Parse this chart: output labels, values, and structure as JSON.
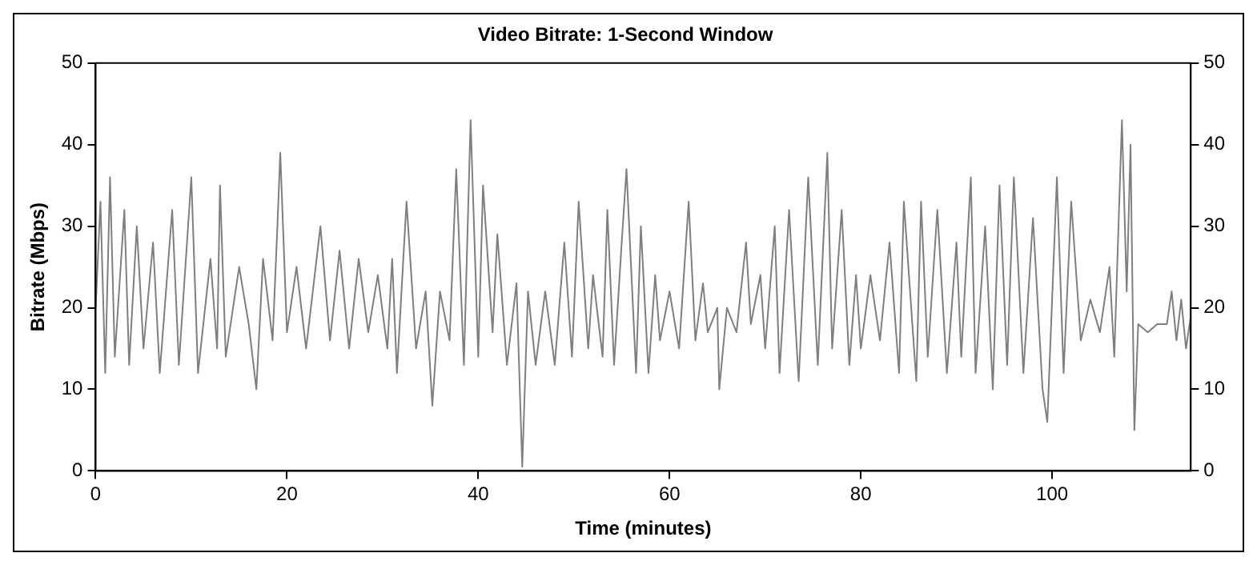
{
  "chart_data": {
    "type": "line",
    "title": "Video Bitrate: 1-Second Window",
    "xlabel": "Time (minutes)",
    "ylabel": "Bitrate (Mbps)",
    "xlim": [
      0,
      114.5
    ],
    "xticks": [
      0,
      20,
      40,
      60,
      80,
      100
    ],
    "ylim": [
      0,
      50
    ],
    "yticks": [
      0,
      10,
      20,
      30,
      40,
      50
    ],
    "y2lim": [
      0,
      50
    ],
    "y2ticks": [
      0,
      10,
      20,
      30,
      40,
      50
    ],
    "grid": false,
    "legend": false,
    "marker": "none",
    "line_style": "solid",
    "series": [
      {
        "color": "#7f7f7f",
        "x": [
          0,
          0.5,
          1,
          1.5,
          2,
          3,
          3.5,
          4.3,
          5,
          6,
          6.7,
          8,
          8.7,
          10,
          10.7,
          12,
          12.7,
          13,
          13.6,
          15,
          16,
          16.8,
          17.5,
          18.5,
          19,
          19.3,
          20,
          21,
          22,
          23.5,
          24.5,
          25.5,
          26.5,
          27.5,
          28.5,
          29.5,
          30.5,
          31,
          31.5,
          32.5,
          33.5,
          34.5,
          35.2,
          36,
          37,
          37.7,
          38.5,
          39.2,
          40,
          40.5,
          41.5,
          42,
          43,
          44,
          44.6,
          45.2,
          46,
          47,
          48,
          49,
          49.8,
          50.5,
          51.5,
          52,
          53,
          53.5,
          54.2,
          55,
          55.5,
          56.5,
          57,
          57.8,
          58.5,
          59,
          60,
          61,
          62,
          62.7,
          63.5,
          64,
          65,
          65.2,
          66,
          67,
          68,
          68.5,
          69.5,
          70,
          71,
          71.5,
          72.5,
          73.5,
          74.5,
          75.5,
          76.5,
          77,
          78,
          78.8,
          79.5,
          80,
          81,
          82,
          83,
          84,
          84.5,
          85.8,
          86.3,
          87,
          88,
          89,
          90,
          90.5,
          91.5,
          92,
          93,
          93.8,
          94.5,
          95.3,
          96,
          97,
          98,
          99,
          99.5,
          100.5,
          101.2,
          102,
          103,
          104,
          105,
          106,
          106.5,
          107.3,
          107.8,
          108.2,
          108.6,
          109,
          110,
          111,
          112,
          112.5,
          113,
          113.5,
          114,
          114.5
        ],
        "values": [
          20,
          33,
          12,
          36,
          14,
          32,
          13,
          30,
          15,
          28,
          12,
          32,
          13,
          36,
          12,
          26,
          15,
          35,
          14,
          25,
          18,
          10,
          26,
          16,
          30,
          39,
          17,
          25,
          15,
          30,
          16,
          27,
          15,
          26,
          17,
          24,
          15,
          26,
          12,
          33,
          15,
          22,
          8,
          22,
          16,
          37,
          13,
          43,
          14,
          35,
          17,
          29,
          13,
          23,
          0.5,
          22,
          13,
          22,
          13,
          28,
          14,
          33,
          15,
          24,
          14,
          32,
          13,
          28,
          37,
          12,
          30,
          12,
          24,
          16,
          22,
          15,
          33,
          16,
          23,
          17,
          20,
          10,
          20,
          17,
          28,
          18,
          24,
          15,
          30,
          12,
          32,
          11,
          36,
          13,
          39,
          15,
          32,
          13,
          24,
          15,
          24,
          16,
          28,
          12,
          33,
          11,
          33,
          14,
          32,
          12,
          28,
          14,
          36,
          12,
          30,
          10,
          35,
          13,
          36,
          12,
          31,
          10,
          6,
          36,
          12,
          33,
          16,
          21,
          17,
          25,
          14,
          43,
          22,
          40,
          5,
          18,
          17,
          18,
          18,
          22,
          16,
          21,
          15,
          19
        ]
      }
    ]
  }
}
